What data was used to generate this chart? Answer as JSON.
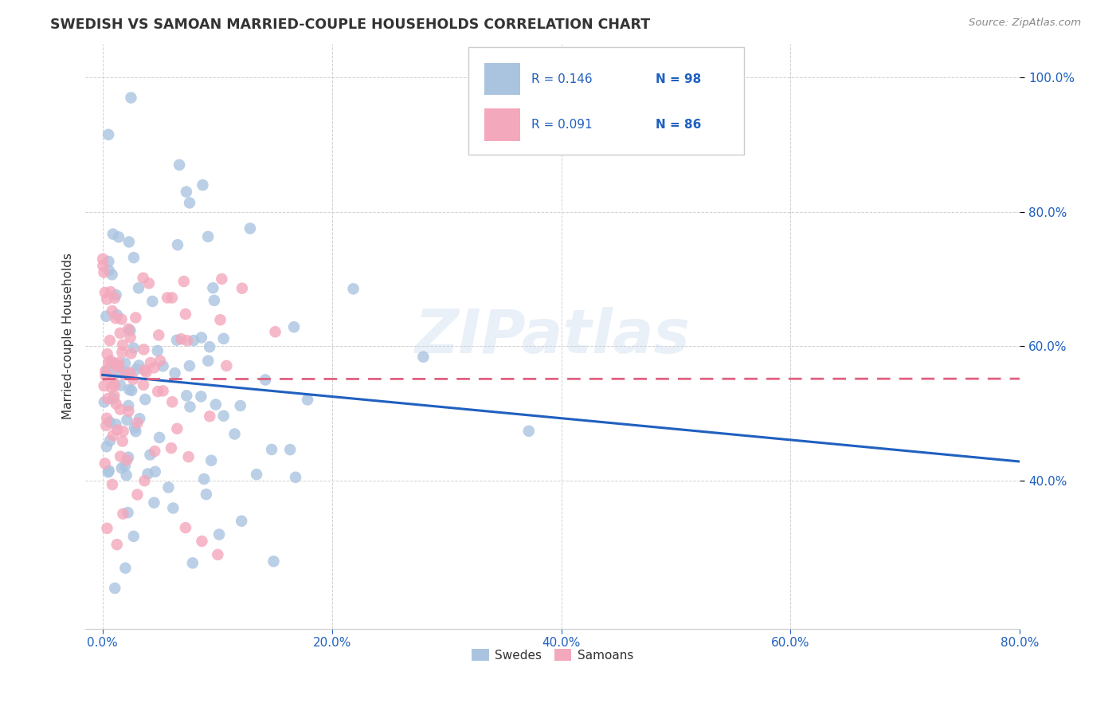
{
  "title": "SWEDISH VS SAMOAN MARRIED-COUPLE HOUSEHOLDS CORRELATION CHART",
  "source": "Source: ZipAtlas.com",
  "ylabel": "Married-couple Households",
  "legend_r1": "R = 0.146",
  "legend_n1": "N = 98",
  "legend_r2": "R = 0.091",
  "legend_n2": "N = 86",
  "swede_color": "#aac4e0",
  "samoan_color": "#f4a8bc",
  "swede_line_color": "#2060c0",
  "samoan_line_color": "#e06080",
  "legend_text_color": "#2060c0",
  "tick_color": "#2060c0",
  "watermark": "ZIPatlas",
  "background_color": "#ffffff",
  "grid_color": "#cccccc",
  "title_color": "#333333",
  "source_color": "#888888",
  "ylabel_color": "#333333"
}
